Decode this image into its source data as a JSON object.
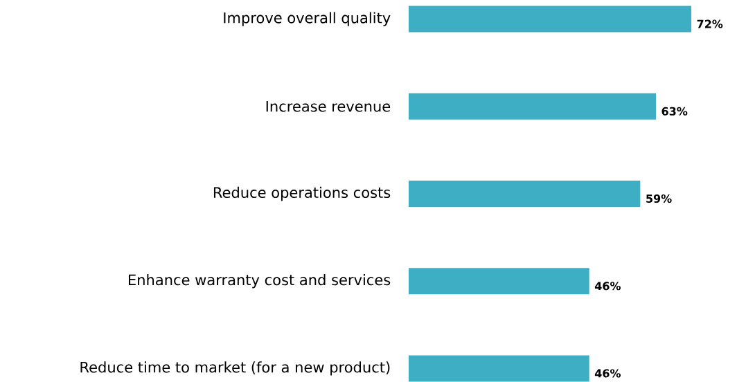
{
  "chart_data": {
    "type": "bar",
    "orientation": "horizontal",
    "categories": [
      "Improve overall quality",
      "Increase revenue",
      "Reduce operations costs",
      "Enhance warranty cost and services",
      "Reduce time to market (for a new product)"
    ],
    "values": [
      72,
      63,
      59,
      46,
      46
    ],
    "value_labels": [
      "72%",
      "63%",
      "59%",
      "46%",
      "46%"
    ],
    "color": "#3daec3"
  }
}
